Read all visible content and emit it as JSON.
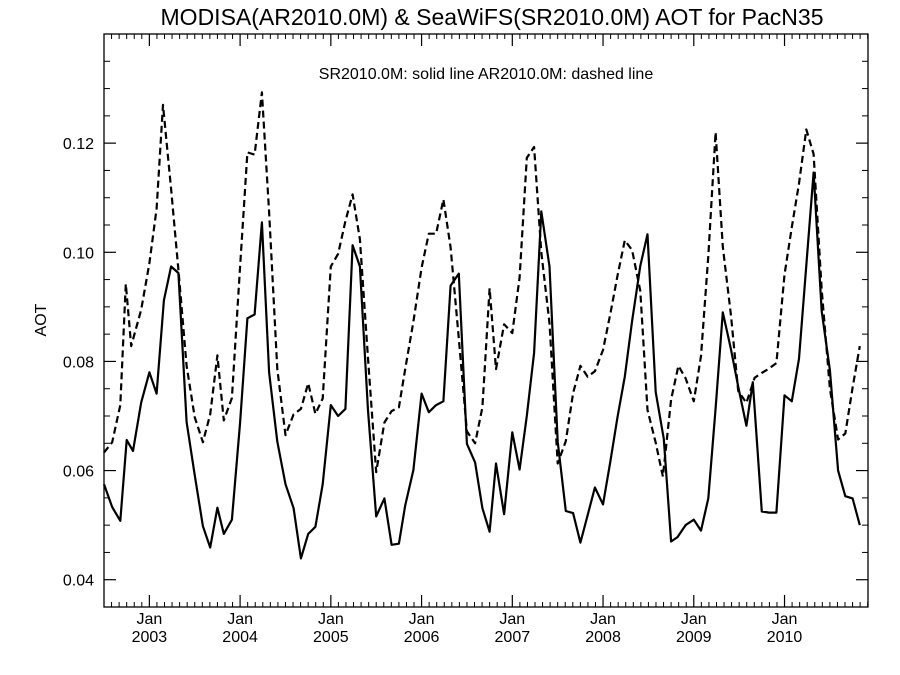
{
  "chart_data": {
    "type": "line",
    "title": "MODISA(AR2010.0M) & SeaWiFS(SR2010.0M)  AOT for PacN35",
    "annotation": "SR2010.0M: solid line   AR2010.0M: dashed line",
    "xlabel": "",
    "ylabel": "AOT",
    "x_units": "decimal year",
    "xlim": [
      2002.5,
      2010.92
    ],
    "ylim": [
      0.035,
      0.14
    ],
    "y_ticks": [
      0.04,
      0.06,
      0.08,
      0.1,
      0.12
    ],
    "y_tick_labels": [
      "0.04",
      "0.06",
      "0.08",
      "0.10",
      "0.12"
    ],
    "x_ticks": [
      {
        "value": 2003.0,
        "month": "Jan",
        "year": "2003"
      },
      {
        "value": 2004.0,
        "month": "Jan",
        "year": "2004"
      },
      {
        "value": 2005.0,
        "month": "Jan",
        "year": "2005"
      },
      {
        "value": 2006.0,
        "month": "Jan",
        "year": "2006"
      },
      {
        "value": 2007.0,
        "month": "Jan",
        "year": "2007"
      },
      {
        "value": 2008.0,
        "month": "Jan",
        "year": "2008"
      },
      {
        "value": 2009.0,
        "month": "Jan",
        "year": "2009"
      },
      {
        "value": 2010.0,
        "month": "Jan",
        "year": "2010"
      }
    ],
    "grid": false,
    "series": [
      {
        "name": "SR2010.0M",
        "style": "solid",
        "points": [
          [
            2002.5,
            0.0575
          ],
          [
            2002.59,
            0.0533
          ],
          [
            2002.68,
            0.0508
          ],
          [
            2002.75,
            0.0656
          ],
          [
            2002.82,
            0.0636
          ],
          [
            2002.91,
            0.0725
          ],
          [
            2003.0,
            0.078
          ],
          [
            2003.08,
            0.0741
          ],
          [
            2003.16,
            0.0912
          ],
          [
            2003.24,
            0.0974
          ],
          [
            2003.32,
            0.0962
          ],
          [
            2003.41,
            0.0689
          ],
          [
            2003.5,
            0.0592
          ],
          [
            2003.59,
            0.0498
          ],
          [
            2003.67,
            0.0459
          ],
          [
            2003.75,
            0.0532
          ],
          [
            2003.82,
            0.0484
          ],
          [
            2003.91,
            0.051
          ],
          [
            2004.0,
            0.0688
          ],
          [
            2004.08,
            0.0879
          ],
          [
            2004.16,
            0.0886
          ],
          [
            2004.24,
            0.1055
          ],
          [
            2004.32,
            0.078
          ],
          [
            2004.41,
            0.0653
          ],
          [
            2004.5,
            0.0575
          ],
          [
            2004.59,
            0.0531
          ],
          [
            2004.67,
            0.0439
          ],
          [
            2004.75,
            0.0484
          ],
          [
            2004.83,
            0.0497
          ],
          [
            2004.91,
            0.0575
          ],
          [
            2005.0,
            0.072
          ],
          [
            2005.08,
            0.07
          ],
          [
            2005.16,
            0.0713
          ],
          [
            2005.24,
            0.1013
          ],
          [
            2005.32,
            0.0974
          ],
          [
            2005.41,
            0.071
          ],
          [
            2005.5,
            0.0516
          ],
          [
            2005.59,
            0.0549
          ],
          [
            2005.67,
            0.0464
          ],
          [
            2005.75,
            0.0466
          ],
          [
            2005.82,
            0.0536
          ],
          [
            2005.91,
            0.0601
          ],
          [
            2006.0,
            0.0741
          ],
          [
            2006.08,
            0.0707
          ],
          [
            2006.16,
            0.072
          ],
          [
            2006.24,
            0.0727
          ],
          [
            2006.32,
            0.0939
          ],
          [
            2006.41,
            0.0961
          ],
          [
            2006.5,
            0.0649
          ],
          [
            2006.59,
            0.0615
          ],
          [
            2006.67,
            0.0531
          ],
          [
            2006.75,
            0.0488
          ],
          [
            2006.82,
            0.0613
          ],
          [
            2006.91,
            0.052
          ],
          [
            2007.0,
            0.067
          ],
          [
            2007.08,
            0.0602
          ],
          [
            2007.16,
            0.07
          ],
          [
            2007.24,
            0.0816
          ],
          [
            2007.32,
            0.1075
          ],
          [
            2007.41,
            0.0974
          ],
          [
            2007.5,
            0.0653
          ],
          [
            2007.59,
            0.0526
          ],
          [
            2007.67,
            0.0522
          ],
          [
            2007.75,
            0.0468
          ],
          [
            2007.83,
            0.0518
          ],
          [
            2007.91,
            0.0569
          ],
          [
            2008.0,
            0.0538
          ],
          [
            2008.08,
            0.0616
          ],
          [
            2008.16,
            0.0699
          ],
          [
            2008.24,
            0.0772
          ],
          [
            2008.32,
            0.0874
          ],
          [
            2008.41,
            0.0975
          ],
          [
            2008.49,
            0.1033
          ],
          [
            2008.58,
            0.0744
          ],
          [
            2008.67,
            0.0658
          ],
          [
            2008.75,
            0.047
          ],
          [
            2008.82,
            0.0478
          ],
          [
            2008.91,
            0.05
          ],
          [
            2009.0,
            0.051
          ],
          [
            2009.08,
            0.049
          ],
          [
            2009.16,
            0.0549
          ],
          [
            2009.24,
            0.0714
          ],
          [
            2009.32,
            0.089
          ],
          [
            2009.41,
            0.0822
          ],
          [
            2009.49,
            0.0754
          ],
          [
            2009.58,
            0.0682
          ],
          [
            2009.65,
            0.0762
          ],
          [
            2009.75,
            0.0525
          ],
          [
            2009.83,
            0.0523
          ],
          [
            2009.91,
            0.0523
          ],
          [
            2010.0,
            0.0738
          ],
          [
            2010.08,
            0.0727
          ],
          [
            2010.16,
            0.0805
          ],
          [
            2010.24,
            0.0976
          ],
          [
            2010.32,
            0.1146
          ],
          [
            2010.41,
            0.0892
          ],
          [
            2010.5,
            0.0784
          ],
          [
            2010.59,
            0.06
          ],
          [
            2010.67,
            0.0553
          ],
          [
            2010.75,
            0.0549
          ],
          [
            2010.83,
            0.05
          ]
        ]
      },
      {
        "name": "AR2010.0M",
        "style": "dashed",
        "points": [
          [
            2002.5,
            0.0633
          ],
          [
            2002.59,
            0.0652
          ],
          [
            2002.68,
            0.072
          ],
          [
            2002.74,
            0.0942
          ],
          [
            2002.8,
            0.0828
          ],
          [
            2002.91,
            0.0895
          ],
          [
            2003.0,
            0.098
          ],
          [
            2003.08,
            0.108
          ],
          [
            2003.15,
            0.127
          ],
          [
            2003.24,
            0.1116
          ],
          [
            2003.32,
            0.0968
          ],
          [
            2003.41,
            0.0792
          ],
          [
            2003.5,
            0.0698
          ],
          [
            2003.59,
            0.0652
          ],
          [
            2003.67,
            0.0703
          ],
          [
            2003.75,
            0.0811
          ],
          [
            2003.82,
            0.0692
          ],
          [
            2003.91,
            0.0733
          ],
          [
            2004.0,
            0.0974
          ],
          [
            2004.08,
            0.1183
          ],
          [
            2004.16,
            0.1179
          ],
          [
            2004.24,
            0.1293
          ],
          [
            2004.32,
            0.1074
          ],
          [
            2004.41,
            0.0786
          ],
          [
            2004.5,
            0.0665
          ],
          [
            2004.59,
            0.0703
          ],
          [
            2004.67,
            0.0713
          ],
          [
            2004.75,
            0.076
          ],
          [
            2004.83,
            0.0704
          ],
          [
            2004.91,
            0.0732
          ],
          [
            2005.0,
            0.0974
          ],
          [
            2005.08,
            0.0997
          ],
          [
            2005.16,
            0.1057
          ],
          [
            2005.24,
            0.1106
          ],
          [
            2005.32,
            0.1024
          ],
          [
            2005.41,
            0.0806
          ],
          [
            2005.5,
            0.0597
          ],
          [
            2005.59,
            0.0688
          ],
          [
            2005.67,
            0.0709
          ],
          [
            2005.75,
            0.0716
          ],
          [
            2005.82,
            0.0786
          ],
          [
            2005.91,
            0.0873
          ],
          [
            2006.0,
            0.0972
          ],
          [
            2006.08,
            0.1034
          ],
          [
            2006.16,
            0.1034
          ],
          [
            2006.24,
            0.1097
          ],
          [
            2006.32,
            0.1009
          ],
          [
            2006.41,
            0.0842
          ],
          [
            2006.5,
            0.0672
          ],
          [
            2006.59,
            0.065
          ],
          [
            2006.67,
            0.0716
          ],
          [
            2006.75,
            0.0934
          ],
          [
            2006.82,
            0.0786
          ],
          [
            2006.91,
            0.0868
          ],
          [
            2007.0,
            0.0852
          ],
          [
            2007.08,
            0.0954
          ],
          [
            2007.16,
            0.1173
          ],
          [
            2007.24,
            0.1193
          ],
          [
            2007.32,
            0.1
          ],
          [
            2007.41,
            0.087
          ],
          [
            2007.5,
            0.0613
          ],
          [
            2007.59,
            0.0654
          ],
          [
            2007.67,
            0.0742
          ],
          [
            2007.75,
            0.0792
          ],
          [
            2007.83,
            0.0772
          ],
          [
            2007.91,
            0.0782
          ],
          [
            2008.0,
            0.0821
          ],
          [
            2008.08,
            0.0887
          ],
          [
            2008.16,
            0.0958
          ],
          [
            2008.24,
            0.1022
          ],
          [
            2008.32,
            0.1004
          ],
          [
            2008.41,
            0.0929
          ],
          [
            2008.49,
            0.0711
          ],
          [
            2008.58,
            0.0651
          ],
          [
            2008.66,
            0.0589
          ],
          [
            2008.75,
            0.073
          ],
          [
            2008.83,
            0.0792
          ],
          [
            2008.91,
            0.0769
          ],
          [
            2009.0,
            0.0727
          ],
          [
            2009.08,
            0.081
          ],
          [
            2009.16,
            0.0993
          ],
          [
            2009.24,
            0.122
          ],
          [
            2009.32,
            0.101
          ],
          [
            2009.41,
            0.0884
          ],
          [
            2009.49,
            0.0746
          ],
          [
            2009.58,
            0.0724
          ],
          [
            2009.67,
            0.077
          ],
          [
            2009.75,
            0.0779
          ],
          [
            2009.83,
            0.0787
          ],
          [
            2009.91,
            0.0797
          ],
          [
            2010.0,
            0.0959
          ],
          [
            2010.08,
            0.1046
          ],
          [
            2010.16,
            0.1126
          ],
          [
            2010.24,
            0.1225
          ],
          [
            2010.32,
            0.118
          ],
          [
            2010.41,
            0.0931
          ],
          [
            2010.5,
            0.075
          ],
          [
            2010.59,
            0.0657
          ],
          [
            2010.67,
            0.0668
          ],
          [
            2010.75,
            0.0752
          ],
          [
            2010.83,
            0.0828
          ]
        ]
      }
    ]
  }
}
